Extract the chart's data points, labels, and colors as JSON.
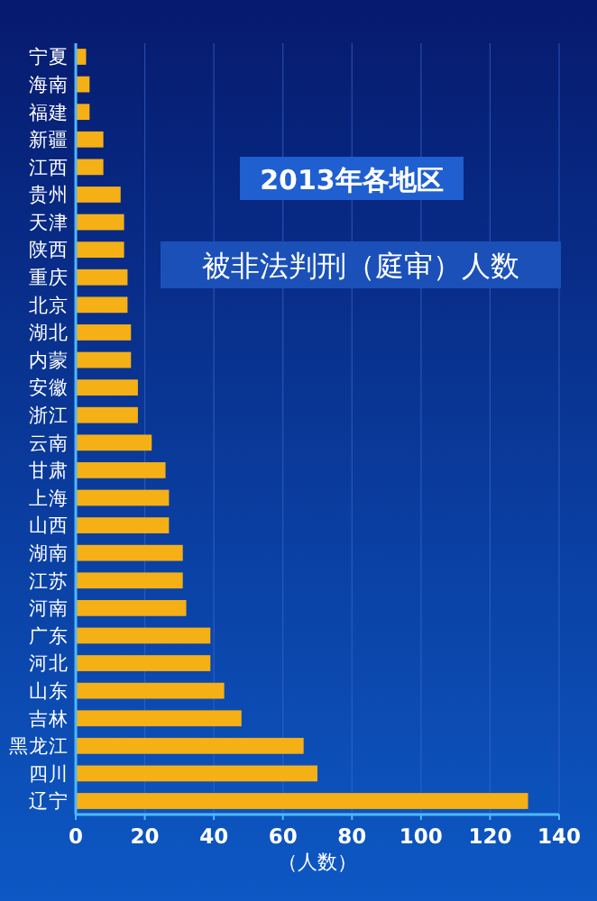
{
  "chart_data": {
    "type": "bar",
    "orientation": "horizontal",
    "title": "2013年各地区",
    "subtitle": "被非法判刑（庭审）人数",
    "xlabel": "（人数）",
    "categories": [
      "宁夏",
      "海南",
      "福建",
      "新疆",
      "江西",
      "贵州",
      "天津",
      "陕西",
      "重庆",
      "北京",
      "湖北",
      "内蒙",
      "安徽",
      "浙江",
      "云南",
      "甘肃",
      "上海",
      "山西",
      "湖南",
      "江苏",
      "河南",
      "广东",
      "河北",
      "山东",
      "吉林",
      "黑龙江",
      "四川",
      "辽宁"
    ],
    "values": [
      3,
      4,
      4,
      8,
      8,
      13,
      14,
      14,
      15,
      15,
      16,
      16,
      18,
      18,
      22,
      26,
      27,
      27,
      31,
      31,
      32,
      39,
      39,
      43,
      48,
      66,
      70,
      131
    ],
    "color": "#f5b015",
    "xlim": [
      0,
      140
    ],
    "xticks": [
      0,
      20,
      40,
      60,
      80,
      100,
      120,
      140
    ],
    "grid": "x"
  }
}
